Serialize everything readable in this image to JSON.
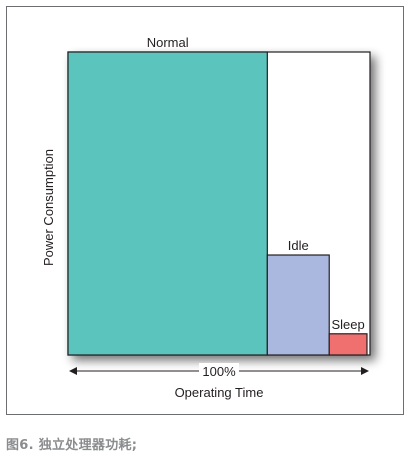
{
  "caption": "图6. 独立处理器功耗;",
  "chart_data": {
    "type": "bar",
    "title": "",
    "xlabel": "Operating Time",
    "ylabel": "Power Consumption",
    "x_range_label": "100%",
    "categories": [
      "Normal",
      "Idle",
      "Sleep"
    ],
    "time_share": [
      0.66,
      0.205,
      0.125
    ],
    "power_level": [
      1.0,
      0.33,
      0.07
    ],
    "colors": {
      "Normal": "#5bc4bc",
      "Idle": "#aab8e0",
      "Sleep": "#f07070",
      "background": "#ffffff",
      "axis": "#231f20"
    },
    "grid": false,
    "legend": "none"
  }
}
